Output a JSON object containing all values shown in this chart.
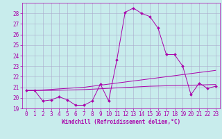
{
  "xlabel": "Windchill (Refroidissement éolien,°C)",
  "background_color": "#c8ecec",
  "grid_color": "#aaaacc",
  "line_color": "#aa00aa",
  "xlim_min": -0.5,
  "xlim_max": 23.5,
  "ylim_min": 19.0,
  "ylim_max": 29.0,
  "yticks": [
    19,
    20,
    21,
    22,
    23,
    24,
    25,
    26,
    27,
    28
  ],
  "xticks": [
    0,
    1,
    2,
    3,
    4,
    5,
    6,
    7,
    8,
    9,
    10,
    11,
    12,
    13,
    14,
    15,
    16,
    17,
    18,
    19,
    20,
    21,
    22,
    23
  ],
  "series1_x": [
    0,
    1,
    2,
    3,
    4,
    5,
    6,
    7,
    8,
    9,
    10,
    11,
    12,
    13,
    14,
    15,
    16,
    17,
    18,
    19,
    20,
    21,
    22,
    23
  ],
  "series1_y": [
    20.7,
    20.7,
    19.7,
    19.8,
    20.1,
    19.8,
    19.3,
    19.3,
    19.7,
    21.3,
    19.7,
    23.6,
    28.1,
    28.5,
    28.0,
    27.7,
    26.6,
    24.1,
    24.1,
    23.0,
    20.3,
    21.4,
    20.9,
    21.1
  ],
  "series2_x": [
    0,
    1,
    2,
    3,
    4,
    5,
    6,
    7,
    8,
    9,
    10,
    11,
    12,
    13,
    14,
    15,
    16,
    17,
    18,
    19,
    20,
    21,
    22,
    23
  ],
  "series2_y": [
    20.7,
    20.7,
    20.75,
    20.8,
    20.85,
    20.9,
    20.95,
    21.0,
    21.1,
    21.2,
    21.3,
    21.4,
    21.5,
    21.6,
    21.7,
    21.8,
    21.9,
    22.0,
    22.1,
    22.2,
    22.3,
    22.4,
    22.5,
    22.6
  ],
  "series3_x": [
    0,
    1,
    2,
    3,
    4,
    5,
    6,
    7,
    8,
    9,
    10,
    11,
    12,
    13,
    14,
    15,
    16,
    17,
    18,
    19,
    20,
    21,
    22,
    23
  ],
  "series3_y": [
    20.7,
    20.7,
    20.7,
    20.7,
    20.72,
    20.74,
    20.76,
    20.78,
    20.82,
    20.86,
    20.9,
    20.94,
    20.98,
    21.02,
    21.06,
    21.1,
    21.12,
    21.14,
    21.16,
    21.18,
    21.2,
    21.22,
    21.24,
    21.26
  ],
  "tick_fontsize": 5.5,
  "xlabel_fontsize": 5.5,
  "figwidth": 3.2,
  "figheight": 2.0,
  "dpi": 100
}
